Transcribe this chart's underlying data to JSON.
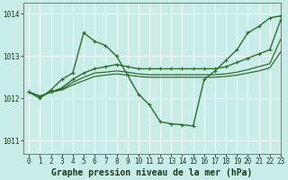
{
  "title": "Graphe pression niveau de la mer (hPa)",
  "bg_color": "#c8ece8",
  "grid_color": "#ffffff",
  "line_color": "#2d6e2d",
  "ylim": [
    1010.7,
    1014.25
  ],
  "xlim": [
    -0.5,
    23
  ],
  "yticks": [
    1011,
    1012,
    1013,
    1014
  ],
  "xticks": [
    0,
    1,
    2,
    3,
    4,
    5,
    6,
    7,
    8,
    9,
    10,
    11,
    12,
    13,
    14,
    15,
    16,
    17,
    18,
    19,
    20,
    21,
    22,
    23
  ],
  "series": [
    {
      "y": [
        1012.15,
        1012.0,
        1012.2,
        1012.45,
        1012.6,
        1013.55,
        1013.35,
        1013.25,
        1013.0,
        1012.55,
        1012.1,
        1011.85,
        1011.45,
        1011.4,
        1011.38,
        1011.35,
        1012.45,
        1012.65,
        1012.9,
        1013.15,
        1013.55,
        1013.7,
        1013.9,
        1013.95
      ],
      "marker": true,
      "lw": 1.0
    },
    {
      "y": [
        1012.15,
        1012.05,
        1012.15,
        1012.25,
        1012.45,
        1012.6,
        1012.7,
        1012.75,
        1012.8,
        1012.75,
        1012.7,
        1012.7,
        1012.7,
        1012.7,
        1012.7,
        1012.7,
        1012.7,
        1012.7,
        1012.75,
        1012.85,
        1012.95,
        1013.05,
        1013.15,
        1013.85
      ],
      "marker": true,
      "lw": 1.0
    },
    {
      "y": [
        1012.15,
        1012.05,
        1012.15,
        1012.22,
        1012.38,
        1012.5,
        1012.6,
        1012.62,
        1012.65,
        1012.62,
        1012.58,
        1012.56,
        1012.56,
        1012.56,
        1012.56,
        1012.56,
        1012.56,
        1012.56,
        1012.58,
        1012.62,
        1012.68,
        1012.75,
        1012.82,
        1013.4
      ],
      "marker": false,
      "lw": 0.9
    },
    {
      "y": [
        1012.15,
        1012.05,
        1012.15,
        1012.2,
        1012.32,
        1012.42,
        1012.52,
        1012.55,
        1012.58,
        1012.55,
        1012.52,
        1012.5,
        1012.5,
        1012.5,
        1012.5,
        1012.5,
        1012.5,
        1012.5,
        1012.52,
        1012.55,
        1012.6,
        1012.65,
        1012.72,
        1013.1
      ],
      "marker": false,
      "lw": 0.9
    }
  ],
  "font_size_label": 7,
  "font_size_tick": 5.5
}
